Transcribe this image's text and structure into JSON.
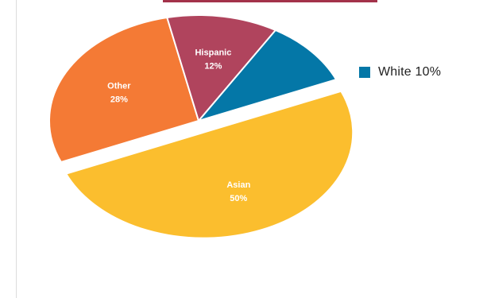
{
  "chart_data": {
    "type": "pie",
    "title": "",
    "exploded": [
      "Asian"
    ],
    "slices": [
      {
        "name": "Asian",
        "label": "Asian",
        "value": 50,
        "value_label": "50%",
        "color": "#fbbe2e"
      },
      {
        "name": "Other",
        "label": "Other",
        "value": 28,
        "value_label": "28%",
        "color": "#f47a35"
      },
      {
        "name": "Hispanic",
        "label": "Hispanic",
        "value": 12,
        "value_label": "12%",
        "color": "#b0445d"
      },
      {
        "name": "White",
        "label": "",
        "value": 10,
        "value_label": "",
        "color": "#0477a7"
      }
    ],
    "legend": {
      "position": "right",
      "entries": [
        {
          "label": "White 10%",
          "color": "#0477a7"
        }
      ]
    }
  }
}
